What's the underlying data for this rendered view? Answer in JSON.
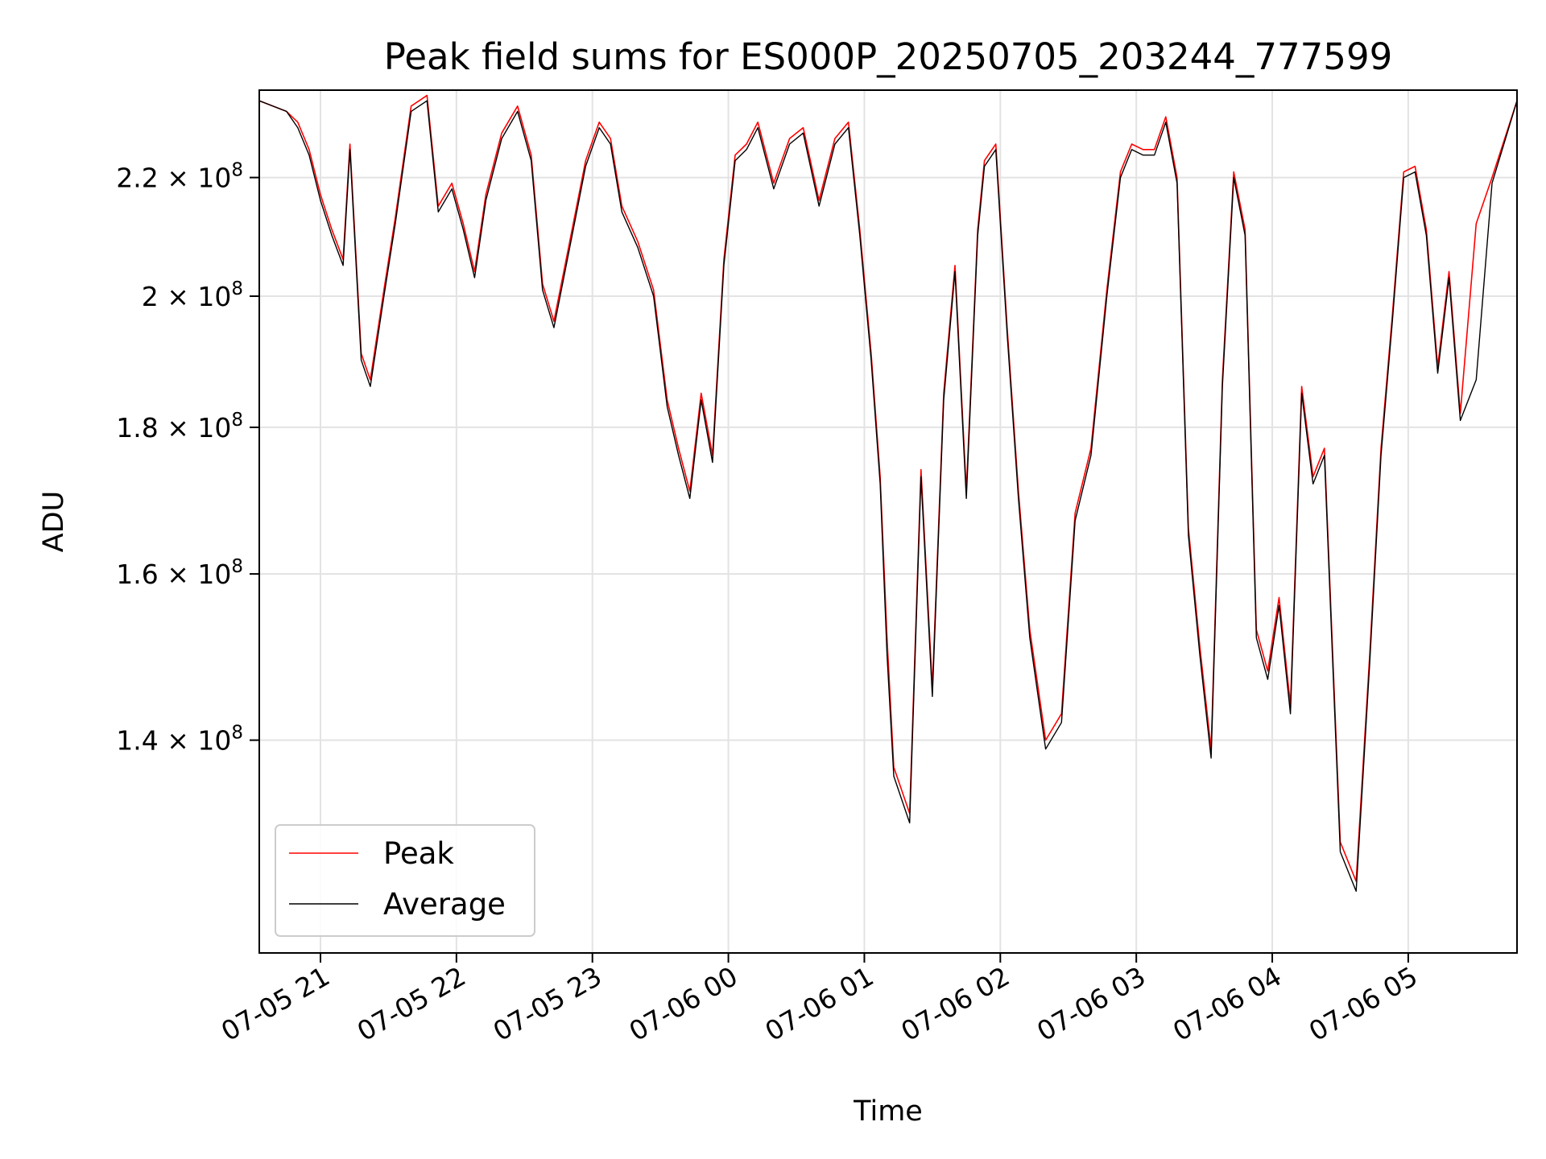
{
  "chart_data": {
    "type": "line",
    "title": "Peak field sums for ES000P_20250705_203244_777599",
    "xlabel": "Time",
    "ylabel": "ADU",
    "y_scale": "log",
    "ylim": [
      118000000,
      236000000
    ],
    "xlim": [
      "07-05 20:33",
      "07-06 05:48"
    ],
    "grid": true,
    "legend_position": "lower-left",
    "x_ticks": [
      "07-05 21",
      "07-05 22",
      "07-05 23",
      "07-06 00",
      "07-06 01",
      "07-06 02",
      "07-06 03",
      "07-06 04",
      "07-06 05"
    ],
    "y_ticks": [
      {
        "value": 140000000,
        "mantissa": "1.4",
        "exponent": "8"
      },
      {
        "value": 160000000,
        "mantissa": "1.6",
        "exponent": "8"
      },
      {
        "value": 180000000,
        "mantissa": "1.8",
        "exponent": "8"
      },
      {
        "value": 200000000,
        "mantissa": "2",
        "exponent": "8"
      },
      {
        "value": 220000000,
        "mantissa": "2.2",
        "exponent": "8"
      }
    ],
    "times": [
      "07-05 20:33",
      "07-05 20:45",
      "07-05 20:50",
      "07-05 20:55",
      "07-05 21:00",
      "07-05 21:05",
      "07-05 21:10",
      "07-05 21:13",
      "07-05 21:18",
      "07-05 21:22",
      "07-05 21:28",
      "07-05 21:33",
      "07-05 21:40",
      "07-05 21:47",
      "07-05 21:52",
      "07-05 21:58",
      "07-05 22:03",
      "07-05 22:08",
      "07-05 22:13",
      "07-05 22:20",
      "07-05 22:27",
      "07-05 22:33",
      "07-05 22:38",
      "07-05 22:43",
      "07-05 22:50",
      "07-05 22:57",
      "07-05 23:03",
      "07-05 23:08",
      "07-05 23:13",
      "07-05 23:20",
      "07-05 23:27",
      "07-05 23:33",
      "07-05 23:38",
      "07-05 23:43",
      "07-05 23:48",
      "07-05 23:53",
      "07-05 23:58",
      "07-06 00:03",
      "07-06 00:08",
      "07-06 00:13",
      "07-06 00:20",
      "07-06 00:27",
      "07-06 00:33",
      "07-06 00:40",
      "07-06 00:47",
      "07-06 00:53",
      "07-06 00:58",
      "07-06 01:03",
      "07-06 01:07",
      "07-06 01:10",
      "07-06 01:13",
      "07-06 01:20",
      "07-06 01:25",
      "07-06 01:30",
      "07-06 01:35",
      "07-06 01:40",
      "07-06 01:45",
      "07-06 01:50",
      "07-06 01:53",
      "07-06 01:58",
      "07-06 02:03",
      "07-06 02:08",
      "07-06 02:13",
      "07-06 02:20",
      "07-06 02:27",
      "07-06 02:33",
      "07-06 02:40",
      "07-06 02:47",
      "07-06 02:53",
      "07-06 02:58",
      "07-06 03:03",
      "07-06 03:08",
      "07-06 03:13",
      "07-06 03:18",
      "07-06 03:23",
      "07-06 03:28",
      "07-06 03:33",
      "07-06 03:38",
      "07-06 03:43",
      "07-06 03:48",
      "07-06 03:53",
      "07-06 03:58",
      "07-06 04:03",
      "07-06 04:08",
      "07-06 04:13",
      "07-06 04:18",
      "07-06 04:23",
      "07-06 04:30",
      "07-06 04:37",
      "07-06 04:43",
      "07-06 04:48",
      "07-06 04:53",
      "07-06 04:58",
      "07-06 05:03",
      "07-06 05:08",
      "07-06 05:13",
      "07-06 05:18",
      "07-06 05:23",
      "07-06 05:30",
      "07-06 05:37",
      "07-06 05:48"
    ],
    "series": [
      {
        "name": "Average",
        "color": "#000000",
        "values": [
          234000000,
          232000000,
          229000000,
          224000000,
          216000000,
          210000000,
          205000000,
          225000000,
          190000000,
          186000000,
          200000000,
          212000000,
          232000000,
          234000000,
          214000000,
          218000000,
          211000000,
          203000000,
          216000000,
          227000000,
          232000000,
          223000000,
          201000000,
          195000000,
          208000000,
          222000000,
          229000000,
          226000000,
          214000000,
          208000000,
          200000000,
          183000000,
          176000000,
          170000000,
          184000000,
          175000000,
          205000000,
          223000000,
          225000000,
          229000000,
          218000000,
          226000000,
          228000000,
          215000000,
          226000000,
          229000000,
          210000000,
          190000000,
          172000000,
          150000000,
          136000000,
          131000000,
          173000000,
          145000000,
          184000000,
          204000000,
          170000000,
          210000000,
          222000000,
          225000000,
          194000000,
          170000000,
          152000000,
          139000000,
          142000000,
          167000000,
          176000000,
          200000000,
          220000000,
          225000000,
          224000000,
          224000000,
          230000000,
          219000000,
          165000000,
          150000000,
          138000000,
          186000000,
          220000000,
          210000000,
          152000000,
          147000000,
          156000000,
          143000000,
          185000000,
          172000000,
          176000000,
          128000000,
          124000000,
          149000000,
          176000000,
          196000000,
          220000000,
          221000000,
          210000000,
          188000000,
          203000000,
          181000000,
          187000000,
          219000000,
          234000000
        ]
      },
      {
        "name": "Peak",
        "color": "#ff0000",
        "values": [
          234000000,
          232000000,
          230000000,
          225000000,
          217000000,
          211000000,
          206000000,
          226000000,
          191000000,
          187000000,
          201000000,
          213000000,
          233000000,
          235000000,
          215000000,
          219000000,
          212000000,
          204000000,
          217000000,
          228000000,
          233000000,
          224000000,
          202000000,
          196000000,
          209000000,
          223000000,
          230000000,
          227000000,
          215000000,
          209000000,
          201000000,
          184000000,
          177000000,
          171000000,
          185000000,
          176000000,
          206000000,
          224000000,
          226000000,
          230000000,
          219000000,
          227000000,
          229000000,
          216000000,
          227000000,
          230000000,
          211000000,
          191000000,
          173000000,
          152000000,
          137000000,
          132000000,
          174000000,
          146000000,
          185000000,
          205000000,
          171000000,
          211000000,
          223000000,
          226000000,
          195000000,
          171000000,
          153000000,
          140000000,
          143000000,
          168000000,
          177000000,
          201000000,
          221000000,
          226000000,
          225000000,
          225000000,
          231000000,
          220000000,
          166000000,
          151000000,
          139000000,
          187000000,
          221000000,
          211000000,
          153000000,
          148000000,
          157000000,
          144000000,
          186000000,
          173000000,
          177000000,
          129000000,
          125000000,
          150000000,
          177000000,
          197000000,
          221000000,
          222000000,
          211000000,
          189000000,
          204000000,
          182000000,
          212000000,
          220000000,
          234000000
        ]
      }
    ]
  }
}
